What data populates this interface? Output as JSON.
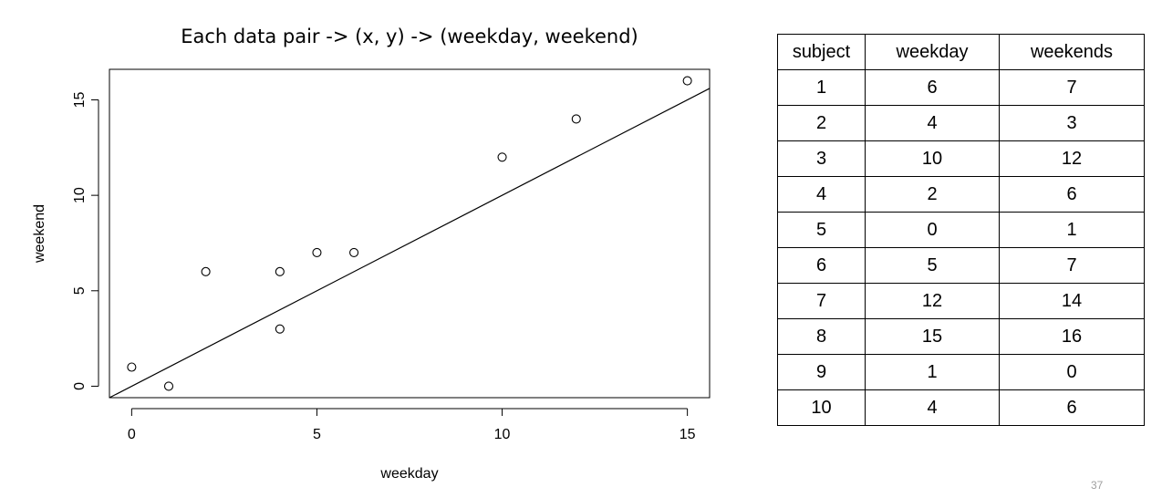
{
  "chart_data": {
    "type": "scatter",
    "title": "Each data pair -> (x, y) -> (weekday, weekend)",
    "xlabel": "weekday",
    "ylabel": "weekend",
    "xlim": [
      -0.6,
      15.6
    ],
    "ylim": [
      -0.6,
      16.6
    ],
    "xticks": [
      0,
      5,
      10,
      15
    ],
    "yticks": [
      0,
      5,
      10,
      15
    ],
    "x": [
      6,
      4,
      10,
      2,
      0,
      5,
      12,
      15,
      1,
      4
    ],
    "y": [
      7,
      3,
      12,
      6,
      1,
      7,
      14,
      16,
      0,
      6
    ],
    "fit_line": {
      "intercept": 0,
      "slope": 1
    },
    "grid": false,
    "marker": "open-circle"
  },
  "table": {
    "headers": [
      "subject",
      "weekday",
      "weekends"
    ],
    "rows": [
      [
        "1",
        "6",
        "7"
      ],
      [
        "2",
        "4",
        "3"
      ],
      [
        "3",
        "10",
        "12"
      ],
      [
        "4",
        "2",
        "6"
      ],
      [
        "5",
        "0",
        "1"
      ],
      [
        "6",
        "5",
        "7"
      ],
      [
        "7",
        "12",
        "14"
      ],
      [
        "8",
        "15",
        "16"
      ],
      [
        "9",
        "1",
        "0"
      ],
      [
        "10",
        "4",
        "6"
      ]
    ]
  },
  "page_number": "37"
}
